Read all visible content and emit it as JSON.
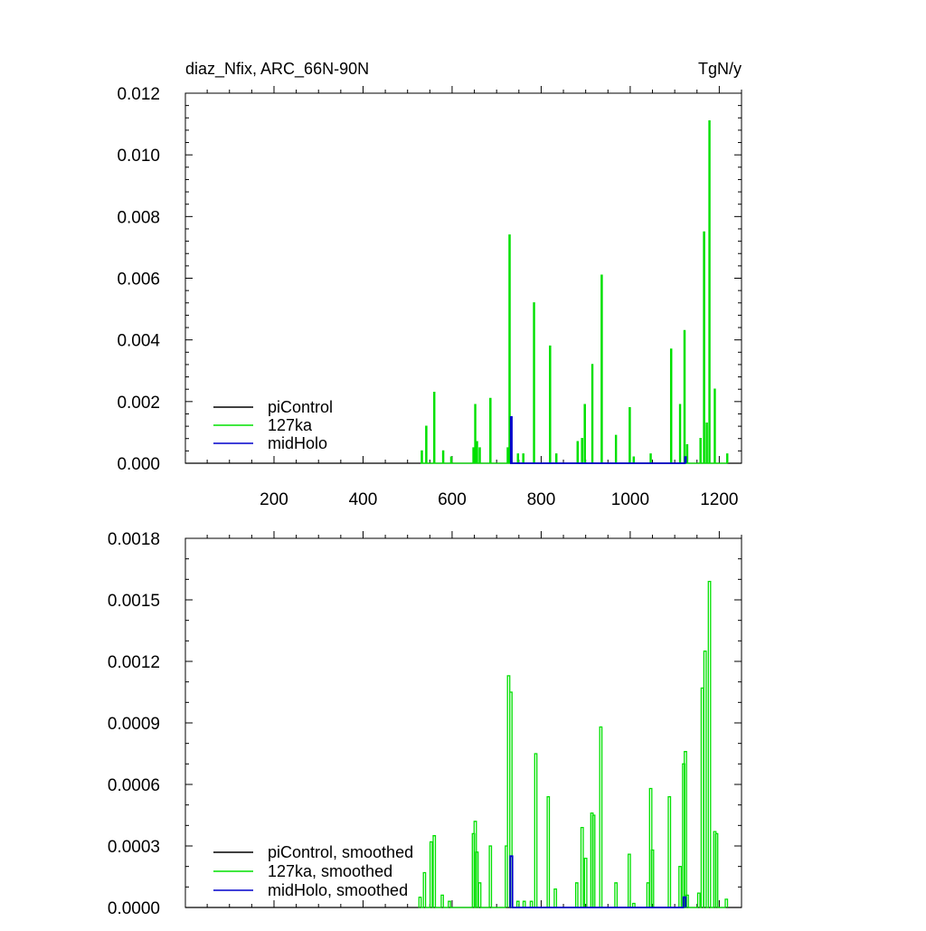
{
  "header": {
    "title": "diaz_Nfix, ARC_66N-90N",
    "units": "TgN/y"
  },
  "colors": {
    "piControl": "#000000",
    "127ka": "#00e000",
    "midHolo": "#0000cc",
    "axis": "#000000",
    "background": "#ffffff"
  },
  "chart_data": [
    {
      "type": "line",
      "title": "diaz_Nfix, ARC_66N-90N",
      "units": "TgN/y",
      "xlabel": "",
      "ylabel": "",
      "xlim": [
        1,
        1250
      ],
      "ylim": [
        0,
        0.012
      ],
      "x_ticks": [
        200,
        400,
        600,
        800,
        1000,
        1200
      ],
      "x_tick_labels": [
        "200",
        "400",
        "600",
        "800",
        "1000",
        "1200"
      ],
      "y_ticks": [
        0,
        0.002,
        0.004,
        0.006,
        0.008,
        0.01,
        0.012
      ],
      "y_tick_labels": [
        "0.000",
        "0.002",
        "0.004",
        "0.006",
        "0.008",
        "0.010",
        "0.012"
      ],
      "grid": false,
      "legend_position": "bottom-left",
      "legend": [
        "piControl",
        "127ka",
        "midHolo"
      ],
      "series": [
        {
          "name": "piControl",
          "color": "#000000",
          "points": [
            [
              1,
              0
            ],
            [
              1250,
              0
            ]
          ]
        },
        {
          "name": "127ka",
          "color": "#00e000",
          "points": [
            [
              532,
              0.0004
            ],
            [
              542,
              0.0012
            ],
            [
              560,
              0.0023
            ],
            [
              580,
              0.0004
            ],
            [
              598,
              0.0002
            ],
            [
              648,
              0.0005
            ],
            [
              652,
              0.0019
            ],
            [
              656,
              0.0007
            ],
            [
              662,
              0.0005
            ],
            [
              686,
              0.0021
            ],
            [
              725,
              0.0005
            ],
            [
              729,
              0.0074
            ],
            [
              748,
              0.0003
            ],
            [
              760,
              0.0003
            ],
            [
              784,
              0.0052
            ],
            [
              820,
              0.0038
            ],
            [
              834,
              0.0003
            ],
            [
              882,
              0.0007
            ],
            [
              892,
              0.0008
            ],
            [
              898,
              0.0019
            ],
            [
              915,
              0.0032
            ],
            [
              936,
              0.0061
            ],
            [
              968,
              0.0009
            ],
            [
              999,
              0.0018
            ],
            [
              1008,
              0.0002
            ],
            [
              1046,
              0.0003
            ],
            [
              1092,
              0.0037
            ],
            [
              1112,
              0.0019
            ],
            [
              1122,
              0.0043
            ],
            [
              1128,
              0.0006
            ],
            [
              1158,
              0.0008
            ],
            [
              1166,
              0.0075
            ],
            [
              1172,
              0.0013
            ],
            [
              1178,
              0.0111
            ],
            [
              1190,
              0.0024
            ],
            [
              1218,
              0.0003
            ]
          ]
        },
        {
          "name": "midHolo",
          "color": "#0000cc",
          "points": [
            [
              733,
              0.0015
            ],
            [
              1124,
              0.0002
            ]
          ]
        }
      ]
    },
    {
      "type": "line",
      "title": "",
      "xlabel": "",
      "ylabel": "",
      "xlim": [
        1,
        1250
      ],
      "ylim": [
        0,
        0.0018
      ],
      "x_ticks": [
        200,
        400,
        600,
        800,
        1000,
        1200
      ],
      "y_ticks": [
        0,
        0.0003,
        0.0006,
        0.0009,
        0.0012,
        0.0015,
        0.0018
      ],
      "y_tick_labels": [
        "0.0000",
        "0.0003",
        "0.0006",
        "0.0009",
        "0.0012",
        "0.0015",
        "0.0018"
      ],
      "grid": false,
      "legend_position": "bottom-left",
      "legend": [
        "piControl, smoothed",
        "127ka, smoothed",
        "midHolo, smoothed"
      ],
      "series": [
        {
          "name": "piControl, smoothed",
          "color": "#000000",
          "points": [
            [
              1,
              0
            ],
            [
              1250,
              0
            ]
          ]
        },
        {
          "name": "127ka, smoothed",
          "color": "#00e000",
          "points": [
            [
              528,
              5e-05
            ],
            [
              538,
              0.00017
            ],
            [
              553,
              0.00032
            ],
            [
              560,
              0.00035
            ],
            [
              578,
              6e-05
            ],
            [
              594,
              3e-05
            ],
            [
              648,
              0.00036
            ],
            [
              652,
              0.00042
            ],
            [
              656,
              0.00027
            ],
            [
              662,
              0.00012
            ],
            [
              686,
              0.0003
            ],
            [
              722,
              0.0003
            ],
            [
              727,
              0.00113
            ],
            [
              732,
              0.00105
            ],
            [
              748,
              3e-05
            ],
            [
              762,
              3e-05
            ],
            [
              778,
              3e-05
            ],
            [
              788,
              0.00075
            ],
            [
              816,
              0.00054
            ],
            [
              832,
              9e-05
            ],
            [
              880,
              0.00012
            ],
            [
              892,
              0.00039
            ],
            [
              900,
              0.00024
            ],
            [
              914,
              0.00046
            ],
            [
              918,
              0.00045
            ],
            [
              934,
              0.00088
            ],
            [
              968,
              0.00012
            ],
            [
              998,
              0.00026
            ],
            [
              1008,
              2e-05
            ],
            [
              1040,
              0.00012
            ],
            [
              1046,
              0.00058
            ],
            [
              1050,
              0.00028
            ],
            [
              1088,
              0.00054
            ],
            [
              1112,
              0.0002
            ],
            [
              1120,
              0.0007
            ],
            [
              1124,
              0.00076
            ],
            [
              1128,
              6e-05
            ],
            [
              1154,
              7e-05
            ],
            [
              1162,
              0.00107
            ],
            [
              1168,
              0.00125
            ],
            [
              1178,
              0.00159
            ],
            [
              1190,
              0.00037
            ],
            [
              1194,
              0.00036
            ],
            [
              1216,
              4e-05
            ]
          ]
        },
        {
          "name": "midHolo, smoothed",
          "color": "#0000cc",
          "points": [
            [
              733,
              0.00025
            ],
            [
              1122,
              5e-05
            ]
          ]
        }
      ]
    }
  ]
}
